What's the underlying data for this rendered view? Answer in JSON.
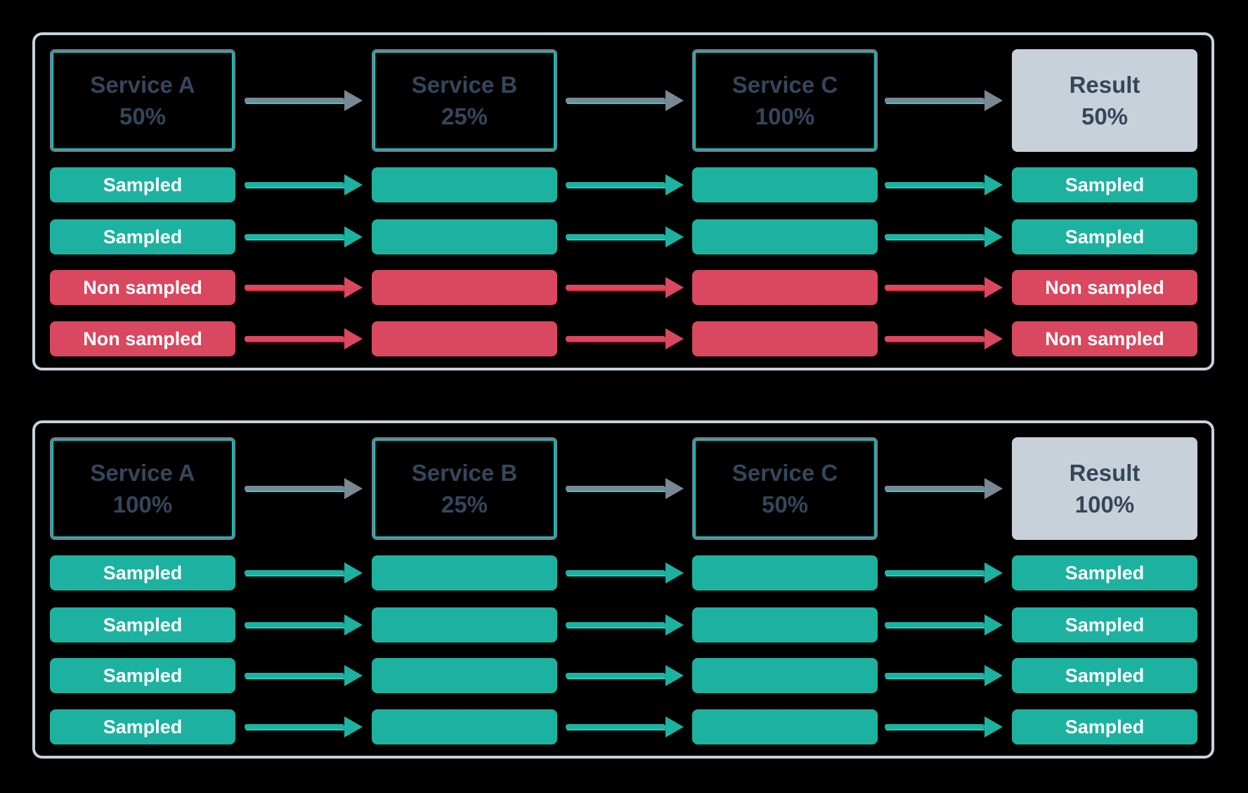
{
  "colors": {
    "background": "#000000",
    "panel_border": "#C8D2DC",
    "box_border": "#73808D",
    "box_inner": "#00C9BE",
    "text_dark": "#35465A",
    "result_bg": "#C8D1DA",
    "sampled": "#1DB2A0",
    "non_sampled": "#D9485E",
    "arrow_gray": "#7A8894",
    "accent_cyan": "#00E0D0",
    "accent_red": "#F02540",
    "bar_text": "#FFFFFF"
  },
  "panels": [
    {
      "services": [
        {
          "name": "Service A",
          "rate": "50%"
        },
        {
          "name": "Service B",
          "rate": "25%"
        },
        {
          "name": "Service C",
          "rate": "100%"
        }
      ],
      "result": {
        "label": "Result",
        "rate": "50%"
      },
      "rows": [
        {
          "label": "Sampled",
          "type": "sampled"
        },
        {
          "label": "Sampled",
          "type": "sampled"
        },
        {
          "label": "Non sampled",
          "type": "non-sampled"
        },
        {
          "label": "Non sampled",
          "type": "non-sampled"
        }
      ]
    },
    {
      "services": [
        {
          "name": "Service A",
          "rate": "100%"
        },
        {
          "name": "Service B",
          "rate": "25%"
        },
        {
          "name": "Service C",
          "rate": "50%"
        }
      ],
      "result": {
        "label": "Result",
        "rate": "100%"
      },
      "rows": [
        {
          "label": "Sampled",
          "type": "sampled"
        },
        {
          "label": "Sampled",
          "type": "sampled"
        },
        {
          "label": "Sampled",
          "type": "sampled"
        },
        {
          "label": "Sampled",
          "type": "sampled"
        }
      ]
    }
  ]
}
